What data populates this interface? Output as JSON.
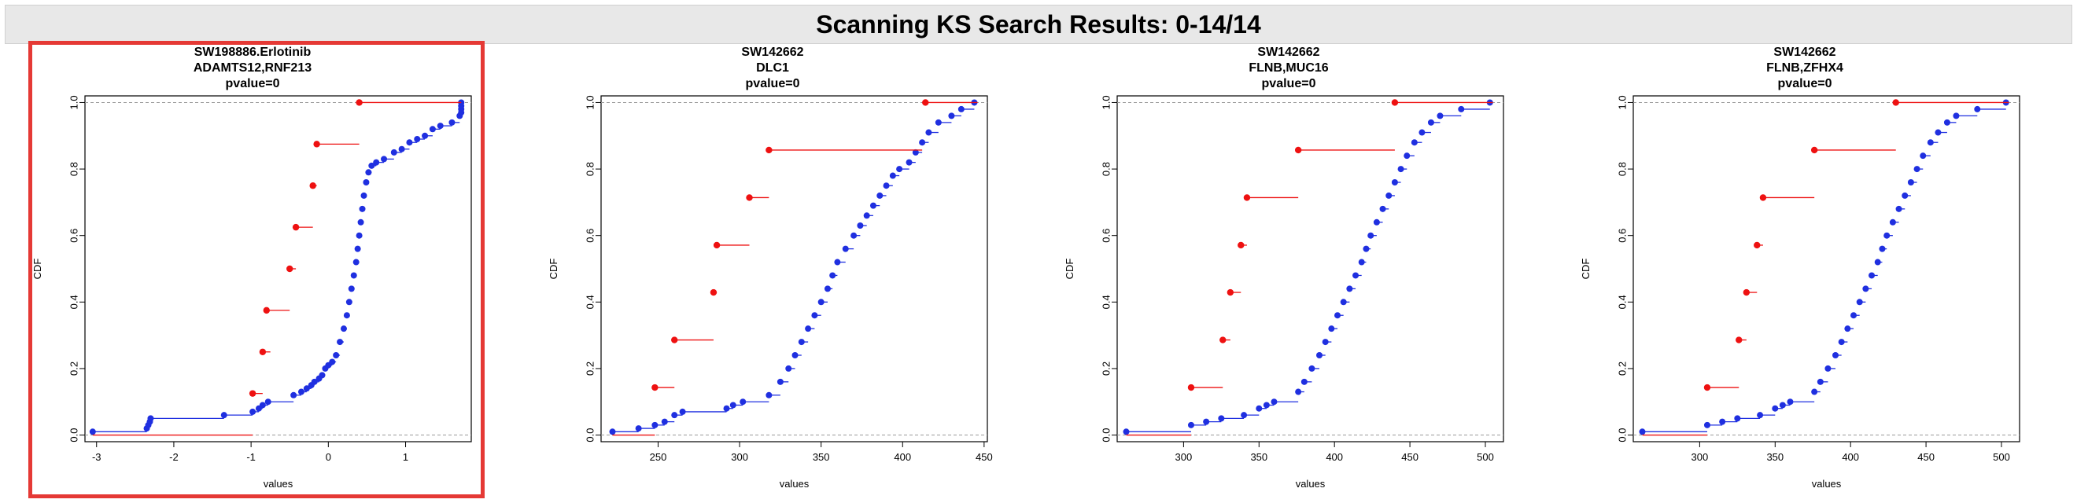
{
  "page": {
    "title": "Scanning KS Search Results: 0-14/14"
  },
  "colors": {
    "selected_border": "#e53935",
    "red_series": "#ee1111",
    "blue_series": "#1f2fe0",
    "header_bg": "#e8e8e8"
  },
  "chart_data": [
    {
      "type": "scatter",
      "title": "SW198886.Erlotinib",
      "subtitle": "ADAMTS12,RNF213",
      "pvalue_label": "pvalue=0",
      "xlabel": "values",
      "ylabel": "CDF",
      "xlim": [
        -3.15,
        1.85
      ],
      "ylim": [
        -0.02,
        1.02
      ],
      "xticks": [
        -3,
        -2,
        -1,
        0,
        1
      ],
      "yticks": [
        0.0,
        0.2,
        0.4,
        0.6,
        0.8,
        1.0
      ],
      "selected": true,
      "series": [
        {
          "name": "red",
          "values": [
            [
              -3.05,
              0.0,
              -0.98
            ],
            [
              -0.98,
              0.125,
              -0.85
            ],
            [
              -0.85,
              0.25,
              -0.75
            ],
            [
              -0.8,
              0.375,
              -0.5
            ],
            [
              -0.5,
              0.5,
              -0.42
            ],
            [
              -0.42,
              0.625,
              -0.2
            ],
            [
              -0.2,
              0.75,
              -0.15
            ],
            [
              -0.15,
              0.875,
              0.4
            ],
            [
              0.4,
              1.0,
              1.72
            ]
          ]
        },
        {
          "name": "blue",
          "values": [
            [
              -3.05,
              0.01,
              -2.35
            ],
            [
              -2.35,
              0.02,
              -2.33
            ],
            [
              -2.33,
              0.03,
              -2.31
            ],
            [
              -2.31,
              0.04,
              -2.3
            ],
            [
              -2.3,
              0.05,
              -1.35
            ],
            [
              -1.35,
              0.06,
              -0.98
            ],
            [
              -0.98,
              0.07,
              -0.9
            ],
            [
              -0.9,
              0.08,
              -0.85
            ],
            [
              -0.85,
              0.09,
              -0.78
            ],
            [
              -0.78,
              0.1,
              -0.45
            ],
            [
              -0.45,
              0.12,
              -0.35
            ],
            [
              -0.35,
              0.13,
              -0.28
            ],
            [
              -0.28,
              0.14,
              -0.22
            ],
            [
              -0.22,
              0.15,
              -0.18
            ],
            [
              -0.18,
              0.16,
              -0.12
            ],
            [
              -0.12,
              0.17,
              -0.08
            ],
            [
              -0.08,
              0.18,
              -0.04
            ],
            [
              -0.04,
              0.2,
              0.0
            ],
            [
              0.0,
              0.21,
              0.05
            ],
            [
              0.05,
              0.22,
              0.1
            ],
            [
              0.1,
              0.24,
              0.15
            ],
            [
              0.15,
              0.28,
              0.2
            ],
            [
              0.2,
              0.32,
              0.24
            ],
            [
              0.24,
              0.36,
              0.27
            ],
            [
              0.27,
              0.4,
              0.3
            ],
            [
              0.3,
              0.44,
              0.33
            ],
            [
              0.33,
              0.48,
              0.36
            ],
            [
              0.36,
              0.52,
              0.38
            ],
            [
              0.38,
              0.56,
              0.4
            ],
            [
              0.4,
              0.6,
              0.42
            ],
            [
              0.42,
              0.64,
              0.44
            ],
            [
              0.44,
              0.68,
              0.46
            ],
            [
              0.46,
              0.72,
              0.49
            ],
            [
              0.49,
              0.76,
              0.52
            ],
            [
              0.52,
              0.79,
              0.56
            ],
            [
              0.56,
              0.81,
              0.62
            ],
            [
              0.62,
              0.82,
              0.72
            ],
            [
              0.72,
              0.83,
              0.85
            ],
            [
              0.85,
              0.85,
              0.95
            ],
            [
              0.95,
              0.86,
              1.05
            ],
            [
              1.05,
              0.88,
              1.15
            ],
            [
              1.15,
              0.89,
              1.25
            ],
            [
              1.25,
              0.9,
              1.35
            ],
            [
              1.35,
              0.92,
              1.45
            ],
            [
              1.45,
              0.93,
              1.6
            ],
            [
              1.6,
              0.94,
              1.7
            ],
            [
              1.7,
              0.96,
              1.72
            ],
            [
              1.72,
              0.97,
              1.72
            ],
            [
              1.72,
              0.98,
              1.72
            ],
            [
              1.72,
              0.99,
              1.72
            ],
            [
              1.72,
              1.0,
              1.72
            ]
          ]
        }
      ]
    },
    {
      "type": "scatter",
      "title": "SW142662",
      "subtitle": "DLC1",
      "pvalue_label": "pvalue=0",
      "xlabel": "values",
      "ylabel": "CDF",
      "xlim": [
        215,
        452
      ],
      "ylim": [
        -0.02,
        1.02
      ],
      "xticks": [
        250,
        300,
        350,
        400,
        450
      ],
      "yticks": [
        0.0,
        0.2,
        0.4,
        0.6,
        0.8,
        1.0
      ],
      "selected": false,
      "series": [
        {
          "name": "red",
          "values": [
            [
              222,
              0.0,
              248
            ],
            [
              248,
              0.143,
              260
            ],
            [
              260,
              0.286,
              284
            ],
            [
              284,
              0.429,
              286
            ],
            [
              286,
              0.571,
              306
            ],
            [
              306,
              0.714,
              318
            ],
            [
              318,
              0.857,
              412
            ],
            [
              414,
              1.0,
              446
            ]
          ]
        },
        {
          "name": "blue",
          "values": [
            [
              222,
              0.01,
              238
            ],
            [
              238,
              0.02,
              248
            ],
            [
              248,
              0.03,
              254
            ],
            [
              254,
              0.04,
              260
            ],
            [
              260,
              0.06,
              265
            ],
            [
              265,
              0.07,
              292
            ],
            [
              292,
              0.08,
              296
            ],
            [
              296,
              0.09,
              302
            ],
            [
              302,
              0.1,
              318
            ],
            [
              318,
              0.12,
              325
            ],
            [
              325,
              0.16,
              330
            ],
            [
              330,
              0.2,
              334
            ],
            [
              334,
              0.24,
              338
            ],
            [
              338,
              0.28,
              342
            ],
            [
              342,
              0.32,
              346
            ],
            [
              346,
              0.36,
              350
            ],
            [
              350,
              0.4,
              354
            ],
            [
              354,
              0.44,
              357
            ],
            [
              357,
              0.48,
              360
            ],
            [
              360,
              0.52,
              365
            ],
            [
              365,
              0.56,
              370
            ],
            [
              370,
              0.6,
              374
            ],
            [
              374,
              0.63,
              378
            ],
            [
              378,
              0.66,
              382
            ],
            [
              382,
              0.69,
              386
            ],
            [
              386,
              0.72,
              390
            ],
            [
              390,
              0.75,
              394
            ],
            [
              394,
              0.78,
              398
            ],
            [
              398,
              0.8,
              404
            ],
            [
              404,
              0.82,
              408
            ],
            [
              408,
              0.85,
              412
            ],
            [
              412,
              0.88,
              416
            ],
            [
              416,
              0.91,
              422
            ],
            [
              422,
              0.94,
              430
            ],
            [
              430,
              0.96,
              436
            ],
            [
              436,
              0.98,
              444
            ],
            [
              444,
              1.0,
              446
            ]
          ]
        }
      ]
    },
    {
      "type": "scatter",
      "title": "SW142662",
      "subtitle": "FLNB,MUC16",
      "pvalue_label": "pvalue=0",
      "xlabel": "values",
      "ylabel": "CDF",
      "xlim": [
        256,
        512
      ],
      "ylim": [
        -0.02,
        1.02
      ],
      "xticks": [
        300,
        350,
        400,
        450,
        500
      ],
      "yticks": [
        0.0,
        0.2,
        0.4,
        0.6,
        0.8,
        1.0
      ],
      "selected": false,
      "series": [
        {
          "name": "red",
          "values": [
            [
              262,
              0.0,
              305
            ],
            [
              305,
              0.143,
              326
            ],
            [
              326,
              0.286,
              331
            ],
            [
              331,
              0.429,
              338
            ],
            [
              338,
              0.571,
              342
            ],
            [
              342,
              0.714,
              376
            ],
            [
              376,
              0.857,
              440
            ],
            [
              440,
              1.0,
              505
            ]
          ]
        },
        {
          "name": "blue",
          "values": [
            [
              262,
              0.01,
              305
            ],
            [
              305,
              0.03,
              315
            ],
            [
              315,
              0.04,
              325
            ],
            [
              325,
              0.05,
              340
            ],
            [
              340,
              0.06,
              350
            ],
            [
              350,
              0.08,
              355
            ],
            [
              355,
              0.09,
              360
            ],
            [
              360,
              0.1,
              376
            ],
            [
              376,
              0.13,
              380
            ],
            [
              380,
              0.16,
              385
            ],
            [
              385,
              0.2,
              390
            ],
            [
              390,
              0.24,
              394
            ],
            [
              394,
              0.28,
              398
            ],
            [
              398,
              0.32,
              402
            ],
            [
              402,
              0.36,
              406
            ],
            [
              406,
              0.4,
              410
            ],
            [
              410,
              0.44,
              414
            ],
            [
              414,
              0.48,
              418
            ],
            [
              418,
              0.52,
              421
            ],
            [
              421,
              0.56,
              424
            ],
            [
              424,
              0.6,
              428
            ],
            [
              428,
              0.64,
              432
            ],
            [
              432,
              0.68,
              436
            ],
            [
              436,
              0.72,
              440
            ],
            [
              440,
              0.76,
              444
            ],
            [
              444,
              0.8,
              448
            ],
            [
              448,
              0.84,
              453
            ],
            [
              453,
              0.88,
              458
            ],
            [
              458,
              0.91,
              464
            ],
            [
              464,
              0.94,
              470
            ],
            [
              470,
              0.96,
              484
            ],
            [
              484,
              0.98,
              503
            ],
            [
              503,
              1.0,
              505
            ]
          ]
        }
      ]
    },
    {
      "type": "scatter",
      "title": "SW142662",
      "subtitle": "FLNB,ZFHX4",
      "pvalue_label": "pvalue=0",
      "xlabel": "values",
      "ylabel": "CDF",
      "xlim": [
        256,
        512
      ],
      "ylim": [
        -0.02,
        1.02
      ],
      "xticks": [
        300,
        350,
        400,
        450,
        500
      ],
      "yticks": [
        0.0,
        0.2,
        0.4,
        0.6,
        0.8,
        1.0
      ],
      "selected": false,
      "series": [
        {
          "name": "red",
          "values": [
            [
              262,
              0.0,
              305
            ],
            [
              305,
              0.143,
              326
            ],
            [
              326,
              0.286,
              331
            ],
            [
              331,
              0.429,
              338
            ],
            [
              338,
              0.571,
              342
            ],
            [
              342,
              0.714,
              376
            ],
            [
              376,
              0.857,
              430
            ],
            [
              430,
              1.0,
              505
            ]
          ]
        },
        {
          "name": "blue",
          "values": [
            [
              262,
              0.01,
              305
            ],
            [
              305,
              0.03,
              315
            ],
            [
              315,
              0.04,
              325
            ],
            [
              325,
              0.05,
              340
            ],
            [
              340,
              0.06,
              350
            ],
            [
              350,
              0.08,
              355
            ],
            [
              355,
              0.09,
              360
            ],
            [
              360,
              0.1,
              376
            ],
            [
              376,
              0.13,
              380
            ],
            [
              380,
              0.16,
              385
            ],
            [
              385,
              0.2,
              390
            ],
            [
              390,
              0.24,
              394
            ],
            [
              394,
              0.28,
              398
            ],
            [
              398,
              0.32,
              402
            ],
            [
              402,
              0.36,
              406
            ],
            [
              406,
              0.4,
              410
            ],
            [
              410,
              0.44,
              414
            ],
            [
              414,
              0.48,
              418
            ],
            [
              418,
              0.52,
              421
            ],
            [
              421,
              0.56,
              424
            ],
            [
              424,
              0.6,
              428
            ],
            [
              428,
              0.64,
              432
            ],
            [
              432,
              0.68,
              436
            ],
            [
              436,
              0.72,
              440
            ],
            [
              440,
              0.76,
              444
            ],
            [
              444,
              0.8,
              448
            ],
            [
              448,
              0.84,
              453
            ],
            [
              453,
              0.88,
              458
            ],
            [
              458,
              0.91,
              464
            ],
            [
              464,
              0.94,
              470
            ],
            [
              470,
              0.96,
              484
            ],
            [
              484,
              0.98,
              503
            ],
            [
              503,
              1.0,
              505
            ]
          ]
        }
      ]
    }
  ]
}
